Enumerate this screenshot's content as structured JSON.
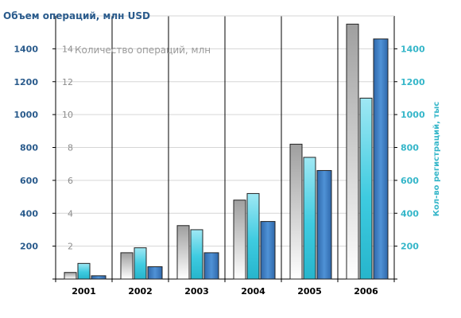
{
  "chart_data": {
    "type": "bar",
    "title": "Объем операций, млн USD",
    "xlabel": "",
    "ylabel_left": "Объем операций, млн USD",
    "ylabel_mid": "Количество операций, млн",
    "ylabel_right": "Кол-во регистраций, тыс",
    "categories": [
      "2001",
      "2002",
      "2003",
      "2004",
      "2005",
      "2006"
    ],
    "ylim": [
      0,
      1600
    ],
    "y_ticks_left": [
      "200",
      "400",
      "600",
      "800",
      "1000",
      "1200",
      "1400"
    ],
    "y_ticks_mid": [
      "2",
      "4",
      "6",
      "8",
      "10",
      "12",
      "14"
    ],
    "y_ticks_right": [
      "200",
      "400",
      "600",
      "800",
      "1000",
      "1200",
      "1400"
    ],
    "tick_values": [
      200,
      400,
      600,
      800,
      1000,
      1200,
      1400
    ],
    "grid": true,
    "series": [
      {
        "values": [
          40,
          160,
          325,
          480,
          820,
          1550
        ],
        "color": "#a8a8a8",
        "axis": "left"
      },
      {
        "values": [
          95,
          190,
          300,
          520,
          740,
          1100
        ],
        "color": "#35c4dc",
        "axis": "mid"
      },
      {
        "values": [
          20,
          75,
          160,
          350,
          660,
          1460
        ],
        "color": "#3a78bb",
        "axis": "right"
      }
    ]
  }
}
